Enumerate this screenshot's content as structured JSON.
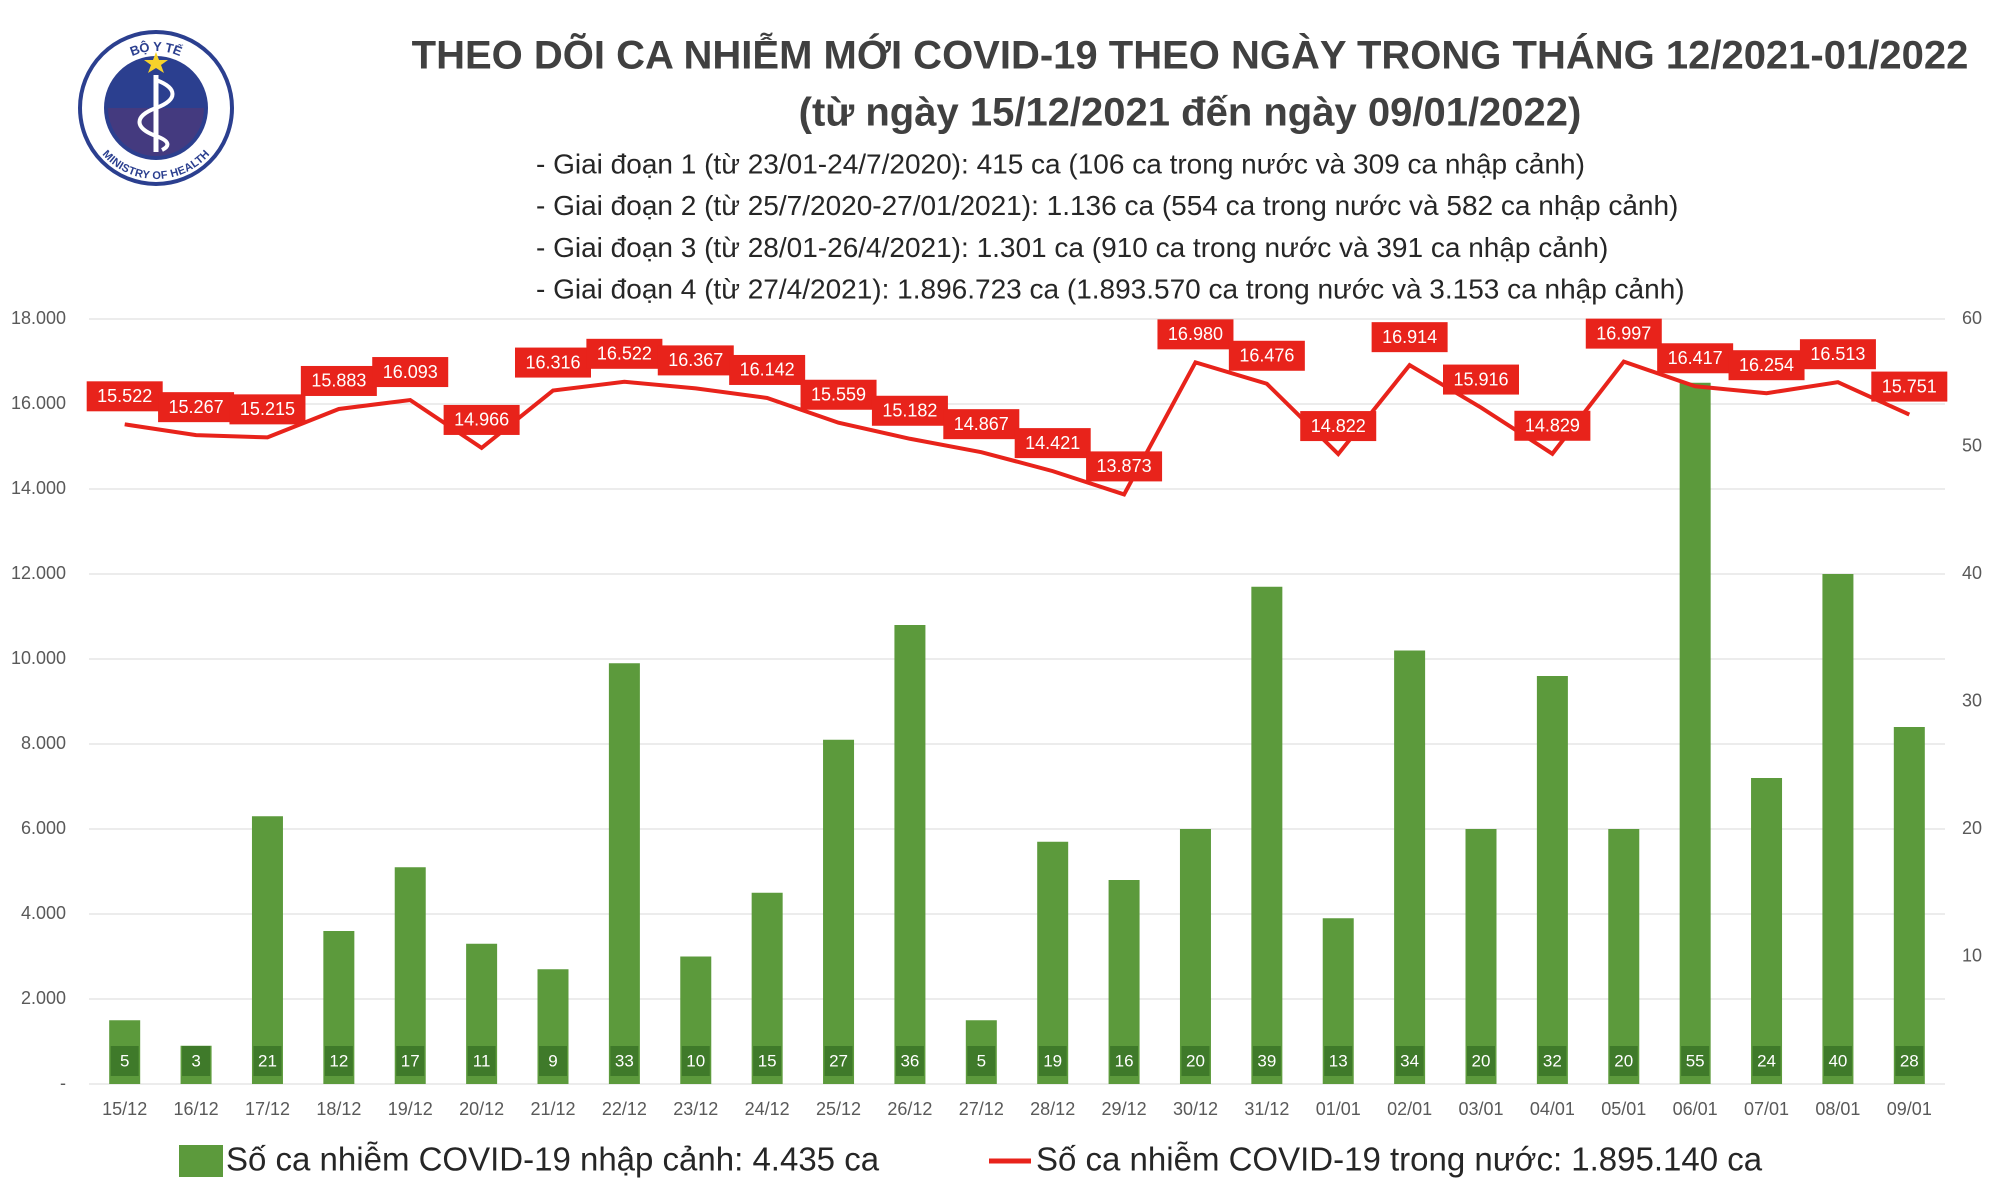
{
  "logo": {
    "top": "BỘ Y TẾ",
    "bottom": "MINISTRY OF HEALTH"
  },
  "chart_data": {
    "type": "bar-line",
    "title": "THEO DÕI CA NHIỄM MỚI COVID-19 THEO NGÀY TRONG THÁNG 12/2021-01/2022",
    "subtitle": "(từ ngày 15/12/2021 đến ngày 09/01/2022)",
    "notes": [
      "- Giai đoạn 1 (từ 23/01-24/7/2020): 415 ca (106 ca trong nước và 309 ca nhập cảnh)",
      "- Giai đoạn 2 (từ 25/7/2020-27/01/2021): 1.136 ca (554 ca trong nước và 582 ca nhập cảnh)",
      "- Giai đoạn 3 (từ 28/01-26/4/2021): 1.301 ca (910 ca trong nước và 391 ca nhập cảnh)",
      "- Giai đoạn 4 (từ 27/4/2021): 1.896.723 ca (1.893.570 ca trong nước và 3.153 ca nhập cảnh)"
    ],
    "categories": [
      "15/12",
      "16/12",
      "17/12",
      "18/12",
      "19/12",
      "20/12",
      "21/12",
      "22/12",
      "23/12",
      "24/12",
      "25/12",
      "26/12",
      "27/12",
      "28/12",
      "29/12",
      "30/12",
      "31/12",
      "01/01",
      "02/01",
      "03/01",
      "04/01",
      "05/01",
      "06/01",
      "07/01",
      "08/01",
      "09/01"
    ],
    "series": [
      {
        "name": "Số ca nhiễm COVID-19 nhập cảnh: 4.435 ca",
        "type": "bar",
        "axis": "y2",
        "color": "#5c9a3c",
        "values": [
          5,
          3,
          21,
          12,
          17,
          11,
          9,
          33,
          10,
          15,
          27,
          36,
          5,
          19,
          16,
          20,
          39,
          13,
          34,
          20,
          32,
          20,
          55,
          24,
          40,
          28
        ]
      },
      {
        "name": "Số ca nhiễm COVID-19 trong nước: 1.895.140 ca",
        "type": "line",
        "axis": "y",
        "color": "#e8231b",
        "values": [
          15522,
          15267,
          15215,
          15883,
          16093,
          14966,
          16316,
          16522,
          16367,
          16142,
          15559,
          15182,
          14867,
          14421,
          13873,
          16980,
          16476,
          14822,
          16914,
          15916,
          14829,
          16997,
          16417,
          16254,
          16513,
          15751
        ],
        "value_labels": [
          "15.522",
          "15.267",
          "15.215",
          "15.883",
          "16.093",
          "14.966",
          "16.316",
          "16.522",
          "16.367",
          "16.142",
          "15.559",
          "15.182",
          "14.867",
          "14.421",
          "13.873",
          "16.980",
          "16.476",
          "14.822",
          "16.914",
          "15.916",
          "14.829",
          "16.997",
          "16.417",
          "16.254",
          "16.513",
          "15.751"
        ]
      }
    ],
    "ylim": [
      0,
      18000
    ],
    "yticks": [
      {
        "value": 0,
        "label": "-"
      },
      {
        "value": 2000,
        "label": "2.000"
      },
      {
        "value": 4000,
        "label": "4.000"
      },
      {
        "value": 6000,
        "label": "6.000"
      },
      {
        "value": 8000,
        "label": "8.000"
      },
      {
        "value": 10000,
        "label": "10.000"
      },
      {
        "value": 12000,
        "label": "12.000"
      },
      {
        "value": 14000,
        "label": "14.000"
      },
      {
        "value": 16000,
        "label": "16.000"
      },
      {
        "value": 18000,
        "label": "18.000"
      }
    ],
    "y2lim": [
      0,
      60
    ],
    "y2ticks": [
      10,
      20,
      30,
      40,
      50,
      60
    ],
    "grid": true
  }
}
